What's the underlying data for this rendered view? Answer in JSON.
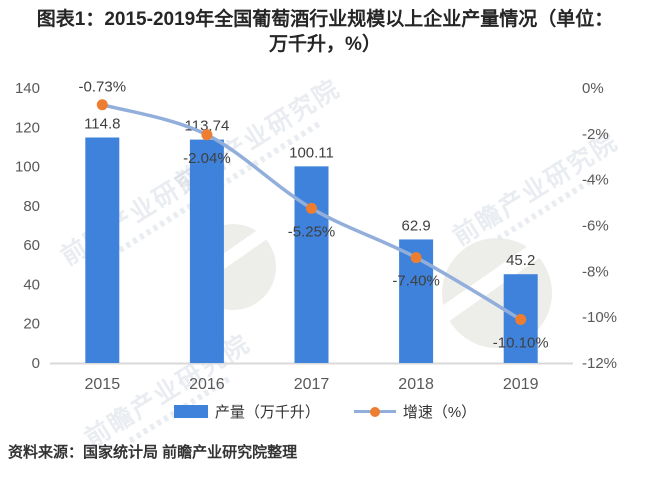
{
  "header": {
    "title_line1": "图表1：2015-2019年全国葡萄酒行业规模以上企业产量情况（单位：",
    "title_line2": "万千升，%）"
  },
  "chart_data": {
    "type": "bar",
    "combo": "bar+line",
    "title": "图表1：2015-2019年全国葡萄酒行业规模以上企业产量情况（单位：万千升，%）",
    "categories": [
      "2015",
      "2016",
      "2017",
      "2018",
      "2019"
    ],
    "series": [
      {
        "name": "产量（万千升）",
        "type": "bar",
        "axis": "left",
        "values": [
          114.8,
          113.74,
          100.11,
          62.9,
          45.2
        ],
        "labels": [
          "114.8",
          "113.74",
          "100.11",
          "62.9",
          "45.2"
        ]
      },
      {
        "name": "增速（%）",
        "type": "line",
        "axis": "right",
        "values": [
          -0.73,
          -2.04,
          -5.25,
          -7.4,
          -10.1
        ],
        "labels": [
          "-0.73%",
          "-2.04%",
          "-5.25%",
          "-7.40%",
          "-10.10%"
        ]
      }
    ],
    "left_axis": {
      "min": 0,
      "max": 140,
      "step": 20,
      "ticks": [
        "0",
        "20",
        "40",
        "60",
        "80",
        "100",
        "120",
        "140"
      ]
    },
    "right_axis": {
      "min": -12,
      "max": 0,
      "step": 2,
      "ticks": [
        "0%",
        "-2%",
        "-4%",
        "-6%",
        "-8%",
        "-10%",
        "-12%"
      ]
    },
    "legend_position": "bottom",
    "grid": false
  },
  "legend": {
    "items": [
      {
        "label": "产量（万千升）",
        "swatch": "bar"
      },
      {
        "label": "增速（%）",
        "swatch": "line-marker"
      }
    ]
  },
  "footer": {
    "source_label": "资料来源：国家统计局 前瞻产业研究院整理"
  },
  "watermark": {
    "text": "前瞻产业研究院"
  },
  "colors": {
    "bar": "#3e82db",
    "line": "#92aedb",
    "marker": "#ed7d31",
    "axis_line": "#d9d9d9",
    "tick_text": "#595959",
    "label_text": "#404040",
    "title_text": "#262626",
    "source_text": "#333333",
    "watermark": "#cfd6e0",
    "watermark_logo": "#e9e9e6"
  }
}
